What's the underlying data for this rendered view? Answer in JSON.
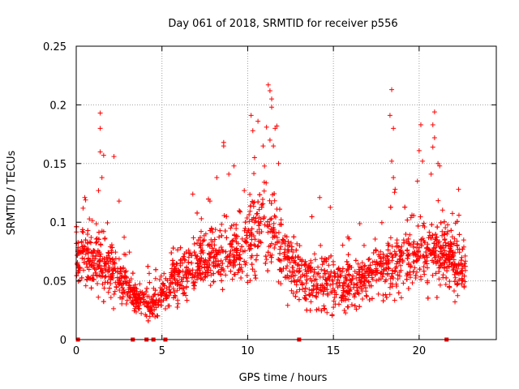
{
  "chart_data": {
    "type": "scatter",
    "title": "Day 061 of 2018, SRMTID for receiver p556",
    "xlabel": "GPS time / hours",
    "ylabel": "SRMTID / TECUs",
    "xlim": [
      0,
      24.5
    ],
    "ylim": [
      0,
      0.25
    ],
    "xticks": [
      0,
      5,
      10,
      15,
      20
    ],
    "yticks": [
      0,
      0.05,
      0.1,
      0.15,
      0.2,
      0.25
    ],
    "ytick_labels": [
      "0",
      "0.05",
      "0.1",
      "0.15",
      "0.2",
      "0.25"
    ],
    "grid": true,
    "marker": "plus",
    "series_color": "#ff0000",
    "zero_markers": [
      0.1,
      3.3,
      4.1,
      4.5,
      5.2,
      13.0,
      21.6
    ],
    "spikes": [
      {
        "x": 1.4,
        "y": 0.193
      },
      {
        "x": 1.4,
        "y": 0.18
      },
      {
        "x": 1.4,
        "y": 0.16
      },
      {
        "x": 1.6,
        "y": 0.157
      },
      {
        "x": 2.2,
        "y": 0.156
      },
      {
        "x": 1.5,
        "y": 0.138
      },
      {
        "x": 1.3,
        "y": 0.127
      },
      {
        "x": 0.5,
        "y": 0.121
      },
      {
        "x": 0.4,
        "y": 0.112
      },
      {
        "x": 2.5,
        "y": 0.118
      },
      {
        "x": 8.6,
        "y": 0.168
      },
      {
        "x": 8.6,
        "y": 0.165
      },
      {
        "x": 8.2,
        "y": 0.138
      },
      {
        "x": 8.9,
        "y": 0.141
      },
      {
        "x": 9.2,
        "y": 0.148
      },
      {
        "x": 10.2,
        "y": 0.191
      },
      {
        "x": 10.3,
        "y": 0.178
      },
      {
        "x": 10.6,
        "y": 0.186
      },
      {
        "x": 10.9,
        "y": 0.165
      },
      {
        "x": 11.2,
        "y": 0.217
      },
      {
        "x": 11.3,
        "y": 0.212
      },
      {
        "x": 11.4,
        "y": 0.205
      },
      {
        "x": 11.4,
        "y": 0.198
      },
      {
        "x": 11.1,
        "y": 0.181
      },
      {
        "x": 11.6,
        "y": 0.18
      },
      {
        "x": 11.7,
        "y": 0.182
      },
      {
        "x": 11.3,
        "y": 0.17
      },
      {
        "x": 11.5,
        "y": 0.165
      },
      {
        "x": 10.4,
        "y": 0.155
      },
      {
        "x": 11.8,
        "y": 0.15
      },
      {
        "x": 18.4,
        "y": 0.213
      },
      {
        "x": 18.3,
        "y": 0.191
      },
      {
        "x": 18.5,
        "y": 0.18
      },
      {
        "x": 18.4,
        "y": 0.152
      },
      {
        "x": 18.5,
        "y": 0.138
      },
      {
        "x": 18.6,
        "y": 0.128
      },
      {
        "x": 20.1,
        "y": 0.183
      },
      {
        "x": 20.0,
        "y": 0.161
      },
      {
        "x": 20.2,
        "y": 0.152
      },
      {
        "x": 20.9,
        "y": 0.194
      },
      {
        "x": 20.8,
        "y": 0.183
      },
      {
        "x": 20.9,
        "y": 0.172
      },
      {
        "x": 20.8,
        "y": 0.164
      },
      {
        "x": 21.1,
        "y": 0.15
      },
      {
        "x": 21.2,
        "y": 0.148
      },
      {
        "x": 20.7,
        "y": 0.141
      },
      {
        "x": 19.9,
        "y": 0.135
      },
      {
        "x": 22.3,
        "y": 0.128
      },
      {
        "x": 14.2,
        "y": 0.121
      },
      {
        "x": 9.8,
        "y": 0.127
      },
      {
        "x": 6.8,
        "y": 0.124
      },
      {
        "x": 7.8,
        "y": 0.118
      }
    ],
    "baseline": [
      [
        0,
        0.075,
        0.02
      ],
      [
        1,
        0.07,
        0.022
      ],
      [
        2,
        0.06,
        0.02
      ],
      [
        3,
        0.045,
        0.015
      ],
      [
        3.5,
        0.035,
        0.012
      ],
      [
        4.5,
        0.03,
        0.012
      ],
      [
        5.5,
        0.05,
        0.017
      ],
      [
        6.5,
        0.06,
        0.02
      ],
      [
        8,
        0.07,
        0.022
      ],
      [
        9.5,
        0.075,
        0.024
      ],
      [
        10.5,
        0.095,
        0.03
      ],
      [
        11.5,
        0.09,
        0.03
      ],
      [
        12.5,
        0.06,
        0.022
      ],
      [
        13.5,
        0.05,
        0.02
      ],
      [
        14.5,
        0.05,
        0.022
      ],
      [
        15.5,
        0.045,
        0.017
      ],
      [
        16.5,
        0.05,
        0.017
      ],
      [
        17.5,
        0.06,
        0.02
      ],
      [
        18.5,
        0.065,
        0.022
      ],
      [
        19.5,
        0.07,
        0.022
      ],
      [
        20.5,
        0.08,
        0.025
      ],
      [
        21.5,
        0.075,
        0.025
      ],
      [
        22.5,
        0.06,
        0.02
      ]
    ],
    "x_range_data": [
      0,
      22.7
    ],
    "n_points": 2600
  }
}
